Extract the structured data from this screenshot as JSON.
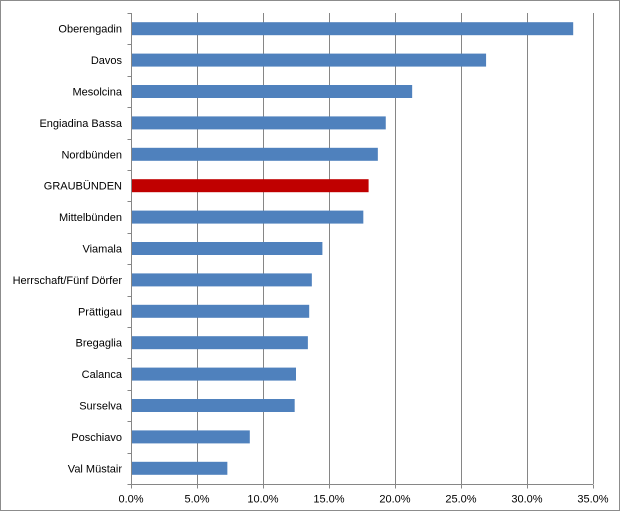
{
  "chart_data": {
    "type": "bar",
    "orientation": "horizontal",
    "categories": [
      "Oberengadin",
      "Davos",
      "Mesolcina",
      "Engiadina Bassa",
      "Nordbünden",
      "GRAUBÜNDEN",
      "Mittelbünden",
      "Viamala",
      "Herrschaft/Fünf Dörfer",
      "Prättigau",
      "Bregaglia",
      "Calanca",
      "Surselva",
      "Poschiavo",
      "Val Müstair"
    ],
    "values": [
      33.5,
      26.9,
      21.3,
      19.3,
      18.7,
      18.0,
      17.6,
      14.5,
      13.7,
      13.5,
      13.4,
      12.5,
      12.4,
      9.0,
      7.3
    ],
    "highlight_category": "GRAUBÜNDEN",
    "colors": {
      "bar": "#4f81bd",
      "highlight": "#c00000",
      "grid": "#868686",
      "axis": "#868686"
    },
    "xlim": [
      0,
      35
    ],
    "xticks": [
      {
        "value": 0,
        "label": "0.0%"
      },
      {
        "value": 5,
        "label": "5.0%"
      },
      {
        "value": 10,
        "label": "10.0%"
      },
      {
        "value": 15,
        "label": "15.0%"
      },
      {
        "value": 20,
        "label": "20.0%"
      },
      {
        "value": 25,
        "label": "25.0%"
      },
      {
        "value": 30,
        "label": "30.0%"
      },
      {
        "value": 35,
        "label": "35.0%"
      }
    ],
    "grid": true,
    "legend": "none",
    "title": "",
    "xlabel": "",
    "ylabel": ""
  }
}
